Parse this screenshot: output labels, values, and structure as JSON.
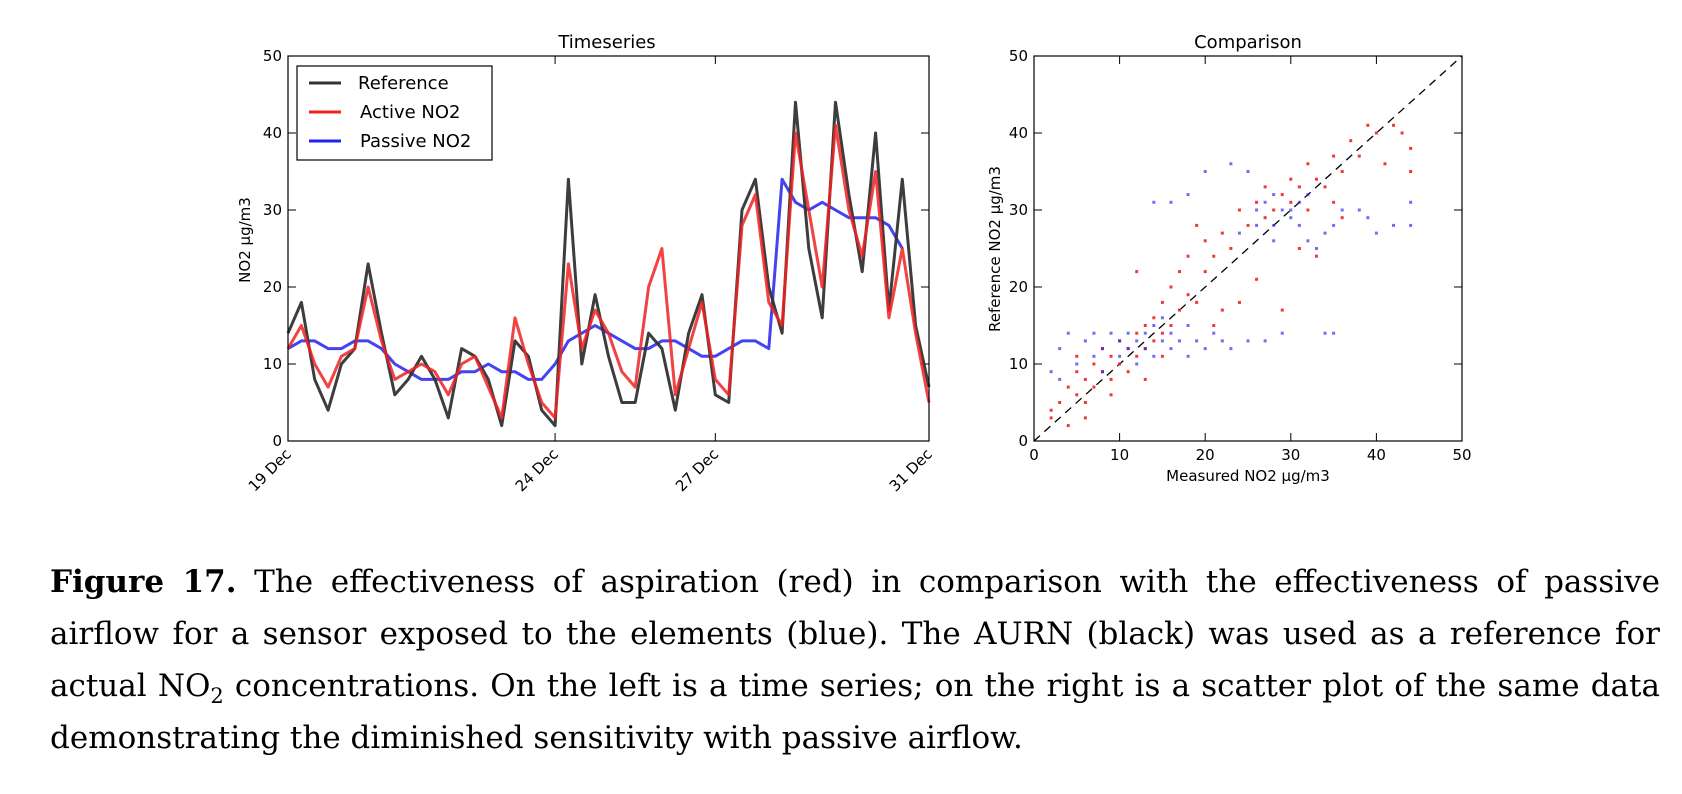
{
  "caption": {
    "label": "Figure 17.",
    "part1": "The effectiveness of aspiration (red) in comparison with the effectiveness of passive airflow for a sensor exposed to the elements (blue). The AURN (black) was used as a reference for actual NO",
    "sub": "2",
    "part2": "concentrations. On the left is a time series; on the right is a scatter plot of the same data demonstrating the diminished sensitivity with passive airflow."
  },
  "colors": {
    "reference": "#333333",
    "active": "#ee2222",
    "passive": "#2222ee",
    "identity": "#000000"
  },
  "chart_data": [
    {
      "type": "line",
      "title": "Timeseries",
      "xlabel": "",
      "ylabel": "NO2 µg/m3",
      "ylim": [
        0,
        50
      ],
      "yticks": [
        0,
        10,
        20,
        30,
        40,
        50
      ],
      "xlim": [
        "19 Dec",
        "31 Dec"
      ],
      "xticks": [
        "19 Dec",
        "24 Dec",
        "27 Dec",
        "31 Dec"
      ],
      "xtick_days": [
        19,
        24,
        27,
        31
      ],
      "legend": "top-left",
      "x": [
        19.0,
        19.25,
        19.5,
        19.75,
        20.0,
        20.25,
        20.5,
        20.75,
        21.0,
        21.25,
        21.5,
        21.75,
        22.0,
        22.25,
        22.5,
        22.75,
        23.0,
        23.25,
        23.5,
        23.75,
        24.0,
        24.25,
        24.5,
        24.75,
        25.0,
        25.25,
        25.5,
        25.75,
        26.0,
        26.25,
        26.5,
        26.75,
        27.0,
        27.25,
        27.5,
        27.75,
        28.0,
        28.25,
        28.5,
        28.75,
        29.0,
        29.25,
        29.5,
        29.75,
        30.0,
        30.25,
        30.5,
        30.75,
        31.0
      ],
      "series": [
        {
          "name": "Reference",
          "values": [
            14,
            18,
            8,
            4,
            10,
            12,
            23,
            14,
            6,
            8,
            11,
            8,
            3,
            12,
            11,
            8,
            2,
            13,
            11,
            4,
            2,
            34,
            10,
            19,
            11,
            5,
            5,
            14,
            12,
            4,
            14,
            19,
            6,
            5,
            30,
            34,
            20,
            14,
            44,
            25,
            16,
            44,
            32,
            22,
            40,
            17,
            34,
            15,
            7
          ]
        },
        {
          "name": "Active NO2",
          "values": [
            12,
            15,
            10,
            7,
            11,
            12,
            20,
            13,
            8,
            9,
            10,
            9,
            6,
            10,
            11,
            7,
            3,
            16,
            10,
            5,
            3,
            23,
            12,
            17,
            14,
            9,
            7,
            20,
            25,
            6,
            12,
            18,
            8,
            6,
            28,
            32,
            18,
            15,
            40,
            30,
            20,
            41,
            30,
            24,
            35,
            16,
            25,
            14,
            5
          ]
        },
        {
          "name": "Passive NO2",
          "values": [
            12,
            13,
            13,
            12,
            12,
            13,
            13,
            12,
            10,
            9,
            8,
            8,
            8,
            9,
            9,
            10,
            9,
            9,
            8,
            8,
            10,
            13,
            14,
            15,
            14,
            13,
            12,
            12,
            13,
            13,
            12,
            11,
            11,
            12,
            13,
            13,
            12,
            34,
            31,
            30,
            31,
            30,
            29,
            29,
            29,
            28,
            25,
            null,
            null
          ]
        }
      ]
    },
    {
      "type": "scatter",
      "title": "Comparison",
      "xlabel": "Measured NO2 µg/m3",
      "ylabel": "Reference NO2 µg/m3",
      "xlim": [
        0,
        50
      ],
      "ylim": [
        0,
        50
      ],
      "xticks": [
        0,
        10,
        20,
        30,
        40,
        50
      ],
      "yticks": [
        0,
        10,
        20,
        30,
        40,
        50
      ],
      "identity_line": true,
      "series": [
        {
          "name": "Active NO2",
          "points": [
            [
              2,
              3
            ],
            [
              2,
              4
            ],
            [
              3,
              5
            ],
            [
              4,
              2
            ],
            [
              4,
              7
            ],
            [
              5,
              6
            ],
            [
              5,
              9
            ],
            [
              6,
              5
            ],
            [
              6,
              8
            ],
            [
              7,
              7
            ],
            [
              7,
              10
            ],
            [
              8,
              9
            ],
            [
              8,
              12
            ],
            [
              9,
              8
            ],
            [
              9,
              11
            ],
            [
              10,
              10
            ],
            [
              10,
              13
            ],
            [
              11,
              9
            ],
            [
              11,
              12
            ],
            [
              12,
              11
            ],
            [
              12,
              14
            ],
            [
              13,
              12
            ],
            [
              13,
              15
            ],
            [
              14,
              13
            ],
            [
              14,
              16
            ],
            [
              15,
              14
            ],
            [
              15,
              18
            ],
            [
              16,
              15
            ],
            [
              16,
              20
            ],
            [
              17,
              17
            ],
            [
              17,
              22
            ],
            [
              18,
              19
            ],
            [
              18,
              24
            ],
            [
              19,
              18
            ],
            [
              20,
              22
            ],
            [
              20,
              26
            ],
            [
              21,
              24
            ],
            [
              22,
              27
            ],
            [
              23,
              25
            ],
            [
              24,
              30
            ],
            [
              25,
              28
            ],
            [
              26,
              31
            ],
            [
              27,
              29
            ],
            [
              27,
              33
            ],
            [
              28,
              30
            ],
            [
              29,
              32
            ],
            [
              30,
              31
            ],
            [
              30,
              34
            ],
            [
              31,
              33
            ],
            [
              32,
              30
            ],
            [
              32,
              36
            ],
            [
              33,
              34
            ],
            [
              34,
              33
            ],
            [
              35,
              37
            ],
            [
              35,
              31
            ],
            [
              36,
              35
            ],
            [
              37,
              39
            ],
            [
              38,
              37
            ],
            [
              39,
              41
            ],
            [
              40,
              40
            ],
            [
              41,
              36
            ],
            [
              42,
              41
            ],
            [
              43,
              40
            ],
            [
              44,
              35
            ],
            [
              44,
              38
            ],
            [
              29,
              17
            ],
            [
              22,
              17
            ],
            [
              26,
              21
            ],
            [
              19,
              28
            ],
            [
              12,
              22
            ],
            [
              5,
              11
            ],
            [
              6,
              3
            ],
            [
              9,
              6
            ],
            [
              13,
              8
            ],
            [
              15,
              11
            ],
            [
              21,
              15
            ],
            [
              24,
              18
            ],
            [
              31,
              25
            ],
            [
              33,
              24
            ],
            [
              36,
              29
            ]
          ]
        },
        {
          "name": "Passive NO2",
          "points": [
            [
              2,
              9
            ],
            [
              3,
              12
            ],
            [
              3,
              8
            ],
            [
              4,
              14
            ],
            [
              5,
              10
            ],
            [
              6,
              13
            ],
            [
              7,
              11
            ],
            [
              7,
              14
            ],
            [
              8,
              12
            ],
            [
              8,
              9
            ],
            [
              9,
              14
            ],
            [
              10,
              13
            ],
            [
              10,
              11
            ],
            [
              11,
              14
            ],
            [
              11,
              12
            ],
            [
              12,
              13
            ],
            [
              12,
              10
            ],
            [
              13,
              14
            ],
            [
              13,
              12
            ],
            [
              14,
              15
            ],
            [
              14,
              11
            ],
            [
              15,
              13
            ],
            [
              15,
              16
            ],
            [
              16,
              12
            ],
            [
              16,
              14
            ],
            [
              17,
              13
            ],
            [
              18,
              15
            ],
            [
              18,
              11
            ],
            [
              19,
              13
            ],
            [
              20,
              12
            ],
            [
              21,
              14
            ],
            [
              22,
              13
            ],
            [
              23,
              12
            ],
            [
              25,
              13
            ],
            [
              27,
              13
            ],
            [
              29,
              14
            ],
            [
              34,
              14
            ],
            [
              35,
              14
            ],
            [
              14,
              31
            ],
            [
              16,
              31
            ],
            [
              18,
              32
            ],
            [
              20,
              35
            ],
            [
              23,
              36
            ],
            [
              25,
              35
            ],
            [
              26,
              30
            ],
            [
              27,
              31
            ],
            [
              28,
              32
            ],
            [
              29,
              30
            ],
            [
              30,
              29
            ],
            [
              31,
              28
            ],
            [
              32,
              26
            ],
            [
              33,
              25
            ],
            [
              34,
              27
            ],
            [
              35,
              28
            ],
            [
              36,
              30
            ],
            [
              38,
              30
            ],
            [
              39,
              29
            ],
            [
              40,
              27
            ],
            [
              42,
              28
            ],
            [
              44,
              31
            ],
            [
              44,
              28
            ],
            [
              28,
              28
            ],
            [
              30,
              30
            ],
            [
              31,
              31
            ],
            [
              32,
              32
            ],
            [
              28,
              26
            ],
            [
              26,
              28
            ],
            [
              24,
              27
            ]
          ]
        }
      ]
    }
  ]
}
